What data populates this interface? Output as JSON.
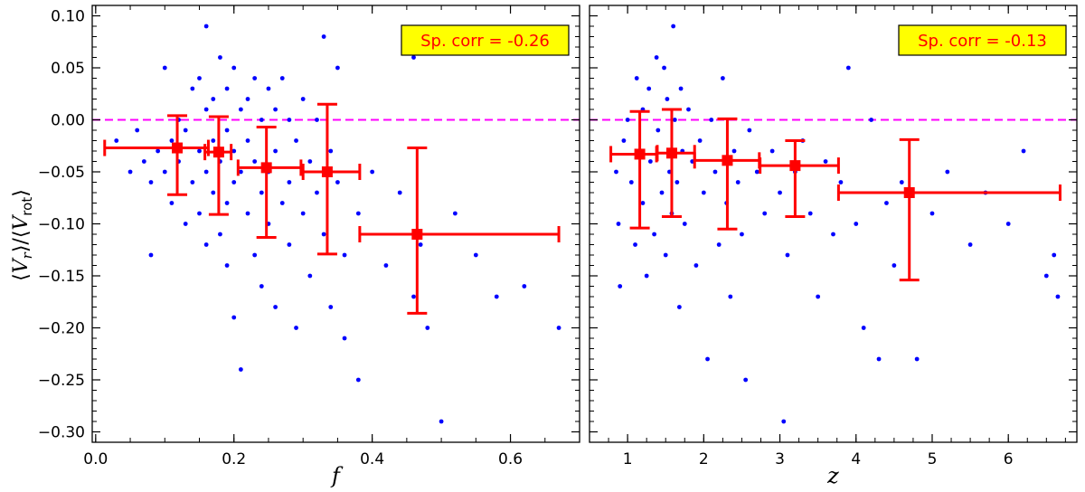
{
  "chart_data": [
    {
      "type": "scatter",
      "panel": "left",
      "xlabel": "f",
      "ylabel": "⟨V_r⟩/⟨V_rot⟩",
      "xlim": [
        -0.005,
        0.7
      ],
      "ylim": [
        -0.31,
        0.11
      ],
      "xticks": [
        0.0,
        0.2,
        0.4,
        0.6
      ],
      "xtick_labels": [
        "0.0",
        "0.2",
        "0.4",
        "0.6"
      ],
      "yticks": [
        0.1,
        0.05,
        0.0,
        -0.05,
        -0.1,
        -0.15,
        -0.2,
        -0.25,
        -0.3
      ],
      "ytick_labels": [
        "0.10",
        "0.05",
        "0.00",
        "−0.05",
        "−0.10",
        "−0.15",
        "−0.20",
        "−0.25",
        "−0.30"
      ],
      "reference_line": {
        "y": 0.0,
        "color": "#ff00ff",
        "style": "dashed"
      },
      "annotation": {
        "text": "Sp. corr = -0.26",
        "position": "top-right",
        "bg": "#ffff00",
        "color": "#ff0000"
      },
      "series": [
        {
          "name": "individual points",
          "color": "#0000ff",
          "points": [
            [
              0.03,
              -0.02
            ],
            [
              0.05,
              -0.05
            ],
            [
              0.06,
              -0.01
            ],
            [
              0.07,
              -0.04
            ],
            [
              0.08,
              -0.06
            ],
            [
              0.08,
              -0.13
            ],
            [
              0.09,
              -0.03
            ],
            [
              0.1,
              0.05
            ],
            [
              0.1,
              -0.05
            ],
            [
              0.11,
              -0.02
            ],
            [
              0.11,
              -0.08
            ],
            [
              0.12,
              0.0
            ],
            [
              0.12,
              -0.04
            ],
            [
              0.13,
              -0.1
            ],
            [
              0.13,
              -0.01
            ],
            [
              0.14,
              0.03
            ],
            [
              0.14,
              -0.06
            ],
            [
              0.15,
              0.04
            ],
            [
              0.15,
              -0.03
            ],
            [
              0.15,
              -0.09
            ],
            [
              0.16,
              0.09
            ],
            [
              0.16,
              0.01
            ],
            [
              0.16,
              -0.05
            ],
            [
              0.16,
              -0.12
            ],
            [
              0.17,
              0.02
            ],
            [
              0.17,
              -0.02
            ],
            [
              0.17,
              -0.07
            ],
            [
              0.18,
              0.06
            ],
            [
              0.18,
              -0.04
            ],
            [
              0.18,
              -0.11
            ],
            [
              0.19,
              0.03
            ],
            [
              0.19,
              -0.01
            ],
            [
              0.19,
              -0.08
            ],
            [
              0.19,
              -0.14
            ],
            [
              0.2,
              0.05
            ],
            [
              0.2,
              -0.03
            ],
            [
              0.2,
              -0.06
            ],
            [
              0.2,
              -0.19
            ],
            [
              0.21,
              0.01
            ],
            [
              0.21,
              -0.05
            ],
            [
              0.21,
              -0.24
            ],
            [
              0.22,
              0.02
            ],
            [
              0.22,
              -0.02
            ],
            [
              0.22,
              -0.09
            ],
            [
              0.23,
              0.04
            ],
            [
              0.23,
              -0.04
            ],
            [
              0.23,
              -0.13
            ],
            [
              0.24,
              0.0
            ],
            [
              0.24,
              -0.07
            ],
            [
              0.24,
              -0.16
            ],
            [
              0.25,
              0.03
            ],
            [
              0.25,
              -0.05
            ],
            [
              0.25,
              -0.1
            ],
            [
              0.26,
              0.01
            ],
            [
              0.26,
              -0.03
            ],
            [
              0.26,
              -0.18
            ],
            [
              0.27,
              0.04
            ],
            [
              0.27,
              -0.08
            ],
            [
              0.28,
              0.0
            ],
            [
              0.28,
              -0.06
            ],
            [
              0.28,
              -0.12
            ],
            [
              0.29,
              -0.02
            ],
            [
              0.29,
              -0.2
            ],
            [
              0.3,
              0.02
            ],
            [
              0.3,
              -0.09
            ],
            [
              0.31,
              -0.04
            ],
            [
              0.31,
              -0.15
            ],
            [
              0.32,
              0.0
            ],
            [
              0.32,
              -0.07
            ],
            [
              0.33,
              0.08
            ],
            [
              0.33,
              -0.11
            ],
            [
              0.34,
              -0.03
            ],
            [
              0.34,
              -0.18
            ],
            [
              0.35,
              0.05
            ],
            [
              0.35,
              -0.06
            ],
            [
              0.36,
              -0.13
            ],
            [
              0.36,
              -0.21
            ],
            [
              0.38,
              -0.09
            ],
            [
              0.38,
              -0.25
            ],
            [
              0.4,
              -0.05
            ],
            [
              0.42,
              -0.14
            ],
            [
              0.44,
              -0.07
            ],
            [
              0.46,
              0.06
            ],
            [
              0.46,
              -0.17
            ],
            [
              0.47,
              -0.12
            ],
            [
              0.48,
              -0.2
            ],
            [
              0.5,
              -0.29
            ],
            [
              0.52,
              -0.09
            ],
            [
              0.55,
              -0.13
            ],
            [
              0.58,
              -0.17
            ],
            [
              0.62,
              -0.16
            ],
            [
              0.67,
              -0.2
            ]
          ]
        },
        {
          "name": "binned means",
          "color": "#ff0000",
          "bins": [
            {
              "x": 0.118,
              "y": -0.027,
              "xerr": [
                0.105,
                0.045
              ],
              "yerr": [
                0.045,
                0.031
              ]
            },
            {
              "x": 0.178,
              "y": -0.031,
              "xerr": [
                0.02,
                0.018
              ],
              "yerr": [
                0.06,
                0.034
              ]
            },
            {
              "x": 0.247,
              "y": -0.046,
              "xerr": [
                0.041,
                0.05
              ],
              "yerr": [
                0.067,
                0.039
              ]
            },
            {
              "x": 0.335,
              "y": -0.05,
              "xerr": [
                0.035,
                0.047
              ],
              "yerr": [
                0.079,
                0.065
              ]
            },
            {
              "x": 0.465,
              "y": -0.11,
              "xerr": [
                0.083,
                0.205
              ],
              "yerr": [
                0.076,
                0.083
              ]
            }
          ]
        }
      ]
    },
    {
      "type": "scatter",
      "panel": "right",
      "xlabel": "z",
      "ylabel": "",
      "xlim": [
        0.5,
        6.9
      ],
      "ylim": [
        -0.31,
        0.11
      ],
      "xticks": [
        1,
        2,
        3,
        4,
        5,
        6
      ],
      "xtick_labels": [
        "1",
        "2",
        "3",
        "4",
        "5",
        "6"
      ],
      "reference_line": {
        "y": 0.0,
        "color": "#ff00ff",
        "style": "dashed"
      },
      "annotation": {
        "text": "Sp. corr = -0.13",
        "position": "top-right",
        "bg": "#ffff00",
        "color": "#ff0000"
      },
      "series": [
        {
          "name": "individual points",
          "color": "#0000ff",
          "points": [
            [
              0.85,
              -0.05
            ],
            [
              0.88,
              -0.1
            ],
            [
              0.9,
              -0.16
            ],
            [
              0.95,
              -0.02
            ],
            [
              1.0,
              0.0
            ],
            [
              1.05,
              -0.06
            ],
            [
              1.1,
              -0.12
            ],
            [
              1.12,
              0.04
            ],
            [
              1.15,
              -0.03
            ],
            [
              1.2,
              0.01
            ],
            [
              1.2,
              -0.08
            ],
            [
              1.25,
              -0.15
            ],
            [
              1.28,
              0.03
            ],
            [
              1.3,
              -0.04
            ],
            [
              1.35,
              -0.11
            ],
            [
              1.38,
              0.06
            ],
            [
              1.4,
              -0.01
            ],
            [
              1.45,
              -0.07
            ],
            [
              1.48,
              0.05
            ],
            [
              1.5,
              -0.13
            ],
            [
              1.52,
              0.02
            ],
            [
              1.55,
              -0.05
            ],
            [
              1.58,
              -0.09
            ],
            [
              1.6,
              0.09
            ],
            [
              1.62,
              0.0
            ],
            [
              1.65,
              -0.06
            ],
            [
              1.68,
              -0.18
            ],
            [
              1.7,
              0.03
            ],
            [
              1.72,
              -0.03
            ],
            [
              1.75,
              -0.1
            ],
            [
              1.8,
              0.01
            ],
            [
              1.85,
              -0.04
            ],
            [
              1.9,
              -0.14
            ],
            [
              1.95,
              -0.02
            ],
            [
              2.0,
              -0.07
            ],
            [
              2.05,
              -0.23
            ],
            [
              2.1,
              0.0
            ],
            [
              2.15,
              -0.05
            ],
            [
              2.2,
              -0.12
            ],
            [
              2.25,
              0.04
            ],
            [
              2.3,
              -0.08
            ],
            [
              2.35,
              -0.17
            ],
            [
              2.4,
              -0.03
            ],
            [
              2.45,
              -0.06
            ],
            [
              2.5,
              -0.11
            ],
            [
              2.55,
              -0.25
            ],
            [
              2.6,
              -0.01
            ],
            [
              2.7,
              -0.05
            ],
            [
              2.8,
              -0.09
            ],
            [
              2.9,
              -0.03
            ],
            [
              3.0,
              -0.07
            ],
            [
              3.05,
              -0.29
            ],
            [
              3.1,
              -0.13
            ],
            [
              3.2,
              -0.05
            ],
            [
              3.3,
              -0.02
            ],
            [
              3.4,
              -0.09
            ],
            [
              3.5,
              -0.17
            ],
            [
              3.6,
              -0.04
            ],
            [
              3.7,
              -0.11
            ],
            [
              3.8,
              -0.06
            ],
            [
              3.9,
              0.05
            ],
            [
              4.0,
              -0.1
            ],
            [
              4.1,
              -0.2
            ],
            [
              4.2,
              0.0
            ],
            [
              4.3,
              -0.23
            ],
            [
              4.4,
              -0.08
            ],
            [
              4.5,
              -0.14
            ],
            [
              4.6,
              -0.06
            ],
            [
              4.8,
              -0.23
            ],
            [
              5.0,
              -0.09
            ],
            [
              5.2,
              -0.05
            ],
            [
              5.5,
              -0.12
            ],
            [
              5.7,
              -0.07
            ],
            [
              6.0,
              -0.1
            ],
            [
              6.2,
              -0.03
            ],
            [
              6.5,
              -0.15
            ],
            [
              6.6,
              -0.13
            ],
            [
              6.65,
              -0.17
            ]
          ]
        },
        {
          "name": "binned means",
          "color": "#ff0000",
          "bins": [
            {
              "x": 1.16,
              "y": -0.033,
              "xerr": [
                0.38,
                0.22
              ],
              "yerr": [
                0.071,
                0.041
              ]
            },
            {
              "x": 1.58,
              "y": -0.032,
              "xerr": [
                0.19,
                0.3
              ],
              "yerr": [
                0.061,
                0.042
              ]
            },
            {
              "x": 2.31,
              "y": -0.039,
              "xerr": [
                0.43,
                0.42
              ],
              "yerr": [
                0.066,
                0.04
              ]
            },
            {
              "x": 3.2,
              "y": -0.044,
              "xerr": [
                0.46,
                0.57
              ],
              "yerr": [
                0.049,
                0.024
              ]
            },
            {
              "x": 4.7,
              "y": -0.07,
              "xerr": [
                0.93,
                1.98
              ],
              "yerr": [
                0.084,
                0.051
              ]
            }
          ]
        }
      ]
    }
  ]
}
